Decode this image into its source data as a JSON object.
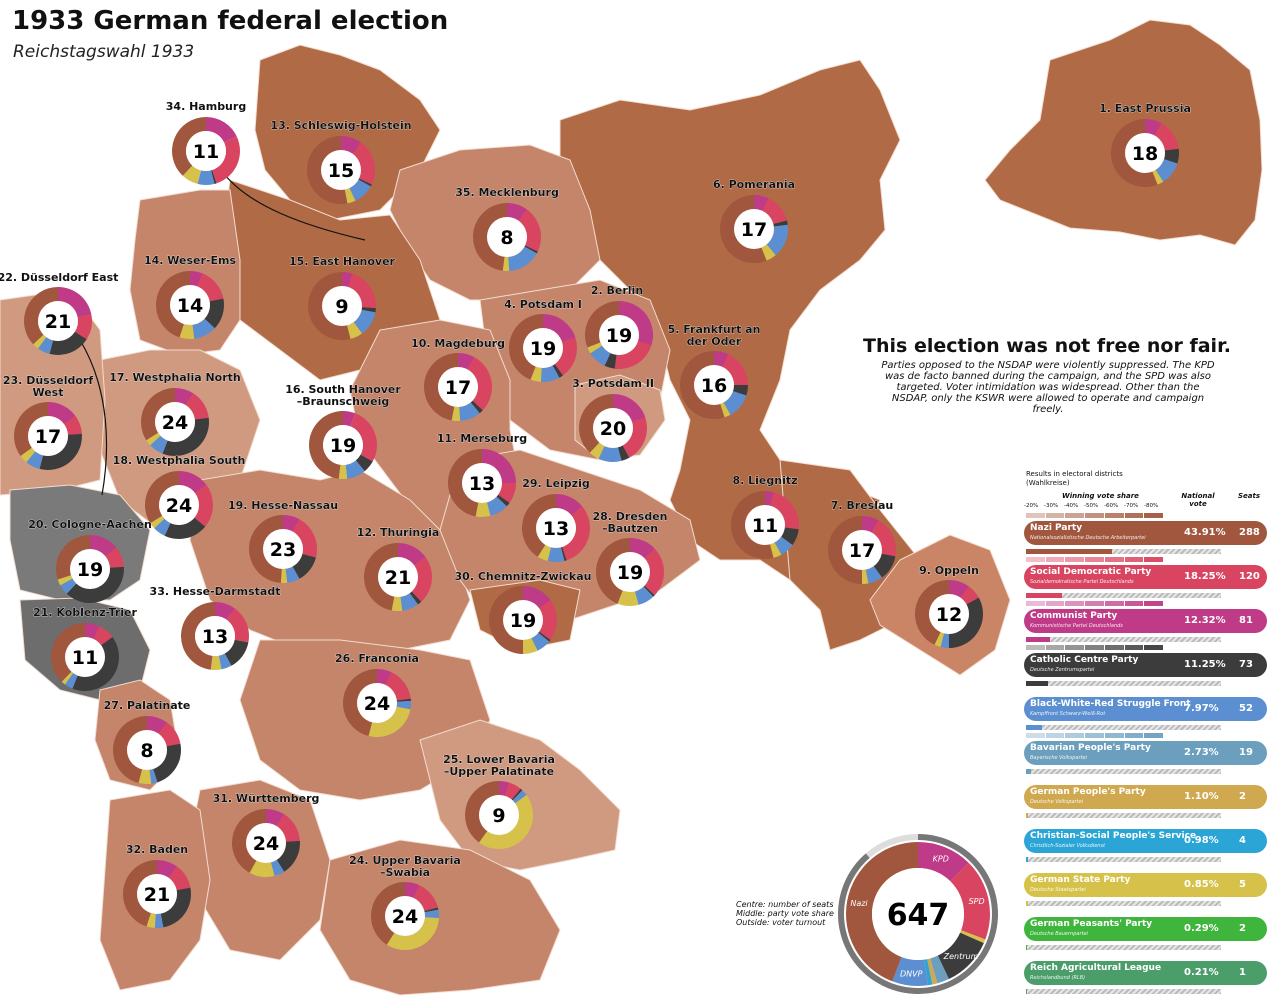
{
  "title": "1933 German federal election",
  "subtitle": "Reichstagswahl 1933",
  "notice": {
    "heading": "This election was not free nor fair.",
    "text": "Parties opposed to the NSDAP were violently suppressed. The KPD was de facto banned during the campaign, and the SPD was also targeted. Voter intimidation was widespread. Other than the NSDAP, only the KSWR were allowed to operate and campaign freely."
  },
  "colors": {
    "nazi": "#a0573d",
    "spd": "#d94560",
    "kpd": "#bf3a87",
    "zentrum": "#3c3c3c",
    "dnvp": "#5b8fd1",
    "bvp": "#6c9fbe",
    "dvp": "#d0a850",
    "csvd": "#2aa5d6",
    "dsp": "#d6c24a",
    "peasants": "#3fb53e",
    "landbund": "#4b9e6a",
    "map_dark": "#b06a45",
    "map_mid": "#c4856a",
    "map_light": "#d09a80",
    "map_grey": "#7a7a7a"
  },
  "legend": {
    "caption": "Results in electoral districts (Wahlkreise)",
    "winning_share_label": "Winning vote share",
    "scale_ticks": [
      "-20%",
      "-30%",
      "-40%",
      "-50%",
      "-60%",
      "-70%",
      "-80%"
    ],
    "national_vote_label": "National vote",
    "seats_label": "Seats",
    "parties": [
      {
        "name": "Nazi Party",
        "sub": "Nationalsozialistische Deutsche Arbeiterpartei",
        "vote": "43.91%",
        "seats": "288",
        "color": "#a0573d",
        "share": 0.4391
      },
      {
        "name": "Social Democratic Party",
        "sub": "Sozialdemokratische Partei Deutschlands",
        "vote": "18.25%",
        "seats": "120",
        "color": "#d94560",
        "share": 0.1825
      },
      {
        "name": "Communist Party",
        "sub": "Kommunistische Partei Deutschlands",
        "vote": "12.32%",
        "seats": "81",
        "color": "#bf3a87",
        "share": 0.1232
      },
      {
        "name": "Catholic Centre Party",
        "sub": "Deutsche Zentrumspartei",
        "vote": "11.25%",
        "seats": "73",
        "color": "#3c3c3c",
        "share": 0.1125
      },
      {
        "name": "Black-White-Red Struggle Front",
        "sub": "Kampffront Schwarz-Weiß-Rot",
        "vote": "7.97%",
        "seats": "52",
        "color": "#5b8fd1",
        "share": 0.0797
      },
      {
        "name": "Bavarian People's Party",
        "sub": "Bayerische Volkspartei",
        "vote": "2.73%",
        "seats": "19",
        "color": "#6c9fbe",
        "share": 0.0273
      },
      {
        "name": "German People's Party",
        "sub": "Deutsche Volkspartei",
        "vote": "1.10%",
        "seats": "2",
        "color": "#d0a850",
        "share": 0.011
      },
      {
        "name": "Christian-Social People's Service",
        "sub": "Christlich-Sozialer Volksdienst",
        "vote": "0.98%",
        "seats": "4",
        "color": "#2aa5d6",
        "share": 0.0098
      },
      {
        "name": "German State Party",
        "sub": "Deutsche Staatspartei",
        "vote": "0.85%",
        "seats": "5",
        "color": "#d6c24a",
        "share": 0.0085
      },
      {
        "name": "German Peasants' Party",
        "sub": "Deutsche Bauernpartei",
        "vote": "0.29%",
        "seats": "2",
        "color": "#3fb53e",
        "share": 0.0029
      },
      {
        "name": "Reich Agricultural League",
        "sub": "Reichslandbund (RLB)",
        "vote": "0.21%",
        "seats": "1",
        "color": "#4b9e6a",
        "share": 0.0021
      }
    ]
  },
  "national": {
    "seats": "647",
    "caption": [
      "Centre: number of seats",
      "Middle: party vote share",
      "Outside: voter turnout"
    ],
    "labels": {
      "kpd": "KPD",
      "spd": "SPD",
      "zentrum": "Zentrum",
      "dnvp": "DNVP",
      "nazi": "Nazi"
    },
    "turnout": 0.887
  },
  "districts": [
    {
      "label": "1. East Prussia",
      "seats": "18",
      "shares": [
        0.56,
        0.15,
        0.08,
        0.07,
        0.11
      ]
    },
    {
      "label": "2. Berlin",
      "seats": "19",
      "shares": [
        0.31,
        0.22,
        0.3,
        0.05,
        0.09
      ]
    },
    {
      "label": "3. Potsdam II",
      "seats": "20",
      "shares": [
        0.38,
        0.22,
        0.2,
        0.04,
        0.11
      ]
    },
    {
      "label": "4. Potsdam I",
      "seats": "19",
      "shares": [
        0.44,
        0.2,
        0.2,
        0.02,
        0.09
      ]
    },
    {
      "label": "5. Frankfurt an der Oder",
      "seats": "16",
      "shares": [
        0.55,
        0.18,
        0.07,
        0.05,
        0.12
      ]
    },
    {
      "label": "6. Pomerania",
      "seats": "17",
      "shares": [
        0.56,
        0.14,
        0.07,
        0.02,
        0.16
      ]
    },
    {
      "label": "7. Breslau",
      "seats": "17",
      "shares": [
        0.5,
        0.2,
        0.08,
        0.12,
        0.07
      ]
    },
    {
      "label": "8. Liegnitz",
      "seats": "11",
      "shares": [
        0.54,
        0.23,
        0.04,
        0.08,
        0.07
      ]
    },
    {
      "label": "9. Oppeln",
      "seats": "12",
      "shares": [
        0.43,
        0.07,
        0.1,
        0.33,
        0.04
      ]
    },
    {
      "label": "10. Magdeburg",
      "seats": "17",
      "shares": [
        0.47,
        0.29,
        0.08,
        0.02,
        0.1
      ]
    },
    {
      "label": "11. Merseburg",
      "seats": "13",
      "shares": [
        0.47,
        0.1,
        0.25,
        0.02,
        0.09
      ]
    },
    {
      "label": "12. Thuringia",
      "seats": "21",
      "shares": [
        0.47,
        0.23,
        0.15,
        0.02,
        0.08
      ]
    },
    {
      "label": "13. Schleswig-Holstein",
      "seats": "15",
      "shares": [
        0.53,
        0.22,
        0.1,
        0.01,
        0.1
      ]
    },
    {
      "label": "14. Weser-Ems",
      "seats": "14",
      "shares": [
        0.45,
        0.16,
        0.06,
        0.15,
        0.11
      ]
    },
    {
      "label": "15. East Hanover",
      "seats": "9",
      "shares": [
        0.54,
        0.21,
        0.05,
        0.02,
        0.12
      ]
    },
    {
      "label": "16. South Hanover –Braunschweig",
      "seats": "19",
      "shares": [
        0.48,
        0.27,
        0.06,
        0.06,
        0.09
      ]
    },
    {
      "label": "17. Westphalia North",
      "seats": "24",
      "shares": [
        0.34,
        0.14,
        0.09,
        0.33,
        0.07
      ]
    },
    {
      "label": "18. Westphalia South",
      "seats": "24",
      "shares": [
        0.34,
        0.21,
        0.15,
        0.21,
        0.06
      ]
    },
    {
      "label": "19. Hesse-Nassau",
      "seats": "23",
      "shares": [
        0.49,
        0.21,
        0.08,
        0.13,
        0.06
      ]
    },
    {
      "label": "20. Cologne-Aachen",
      "seats": "19",
      "shares": [
        0.3,
        0.1,
        0.14,
        0.38,
        0.05
      ]
    },
    {
      "label": "21. Koblenz-Trier",
      "seats": "11",
      "shares": [
        0.38,
        0.08,
        0.07,
        0.41,
        0.04
      ]
    },
    {
      "label": "22. Düsseldorf East",
      "seats": "21",
      "shares": [
        0.37,
        0.12,
        0.22,
        0.2,
        0.06
      ]
    },
    {
      "label": "23. Düsseldorf West",
      "seats": "17",
      "shares": [
        0.35,
        0.09,
        0.15,
        0.3,
        0.07
      ]
    },
    {
      "label": "24. Upper Bavaria –Swabia",
      "seats": "24",
      "shares": [
        0.41,
        0.14,
        0.07,
        0.01,
        0.04
      ]
    },
    {
      "label": "25. Lower Bavaria –Upper Palatinate",
      "seats": "9",
      "shares": [
        0.4,
        0.06,
        0.05,
        0.01,
        0.03
      ]
    },
    {
      "label": "26. Franconia",
      "seats": "24",
      "shares": [
        0.46,
        0.16,
        0.07,
        0.01,
        0.04
      ]
    },
    {
      "label": "27. Palatinate",
      "seats": "8",
      "shares": [
        0.46,
        0.12,
        0.1,
        0.23,
        0.03
      ]
    },
    {
      "label": "28. Dresden –Bautzen",
      "seats": "19",
      "shares": [
        0.44,
        0.24,
        0.13,
        0.01,
        0.08
      ]
    },
    {
      "label": "29. Leipzig",
      "seats": "13",
      "shares": [
        0.41,
        0.31,
        0.14,
        0.01,
        0.08
      ]
    },
    {
      "label": "30. Chemnitz-Zwickau",
      "seats": "19",
      "shares": [
        0.5,
        0.2,
        0.15,
        0.01,
        0.07
      ]
    },
    {
      "label": "31. Württemberg",
      "seats": "24",
      "shares": [
        0.42,
        0.15,
        0.09,
        0.17,
        0.05
      ]
    },
    {
      "label": "32. Baden",
      "seats": "21",
      "shares": [
        0.45,
        0.12,
        0.1,
        0.25,
        0.04
      ]
    },
    {
      "label": "33. Hesse-Darmstadt",
      "seats": "13",
      "shares": [
        0.48,
        0.18,
        0.1,
        0.14,
        0.05
      ]
    },
    {
      "label": "34. Hamburg",
      "seats": "11",
      "shares": [
        0.38,
        0.27,
        0.18,
        0.01,
        0.08
      ]
    },
    {
      "label": "35. Mecklenburg",
      "seats": "8",
      "shares": [
        0.48,
        0.22,
        0.1,
        0.01,
        0.16
      ]
    }
  ]
}
